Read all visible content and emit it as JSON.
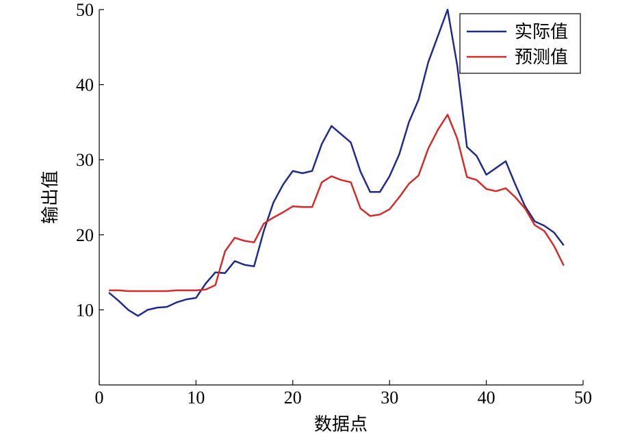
{
  "chart_data": {
    "type": "line",
    "xlabel": "数据点",
    "ylabel": "输出值",
    "xlim": [
      0,
      50
    ],
    "ylim": [
      0,
      50
    ],
    "x_ticks": [
      0,
      10,
      20,
      30,
      40,
      50
    ],
    "y_ticks": [
      10,
      20,
      30,
      40,
      50
    ],
    "grid": false,
    "legend_position": "top-right",
    "x": [
      1,
      2,
      3,
      4,
      5,
      6,
      7,
      8,
      9,
      10,
      11,
      12,
      13,
      14,
      15,
      16,
      17,
      18,
      19,
      20,
      21,
      22,
      23,
      24,
      25,
      26,
      27,
      28,
      29,
      30,
      31,
      32,
      33,
      34,
      35,
      36,
      37,
      38,
      39,
      40,
      41,
      42,
      43,
      44,
      45,
      46,
      47,
      48
    ],
    "series": [
      {
        "name": "实际值",
        "color": "#1f2a8c",
        "values": [
          12.3,
          11.2,
          10.0,
          9.2,
          10.0,
          10.3,
          10.4,
          11.0,
          11.4,
          11.6,
          13.5,
          15.0,
          14.9,
          16.5,
          16.0,
          15.8,
          20.5,
          24.3,
          26.7,
          28.5,
          28.2,
          28.5,
          32.1,
          34.5,
          33.4,
          32.3,
          28.4,
          25.7,
          25.7,
          27.8,
          30.7,
          35.0,
          38.0,
          43.0,
          46.5,
          50.0,
          42.5,
          31.7,
          30.5,
          28.0,
          28.9,
          29.8,
          26.7,
          23.8,
          21.8,
          21.2,
          20.3,
          18.6
        ]
      },
      {
        "name": "预测值",
        "color": "#d42a2a",
        "values": [
          12.6,
          12.6,
          12.5,
          12.5,
          12.5,
          12.5,
          12.5,
          12.6,
          12.6,
          12.6,
          12.7,
          13.3,
          17.8,
          19.6,
          19.2,
          19.0,
          21.5,
          22.3,
          23.0,
          23.8,
          23.7,
          23.7,
          27.0,
          27.8,
          27.3,
          27.0,
          23.5,
          22.5,
          22.7,
          23.4,
          25.0,
          26.8,
          27.9,
          31.5,
          34.0,
          36.0,
          32.8,
          27.7,
          27.3,
          26.1,
          25.8,
          26.2,
          25.0,
          23.5,
          21.3,
          20.5,
          18.5,
          15.9
        ]
      }
    ]
  }
}
